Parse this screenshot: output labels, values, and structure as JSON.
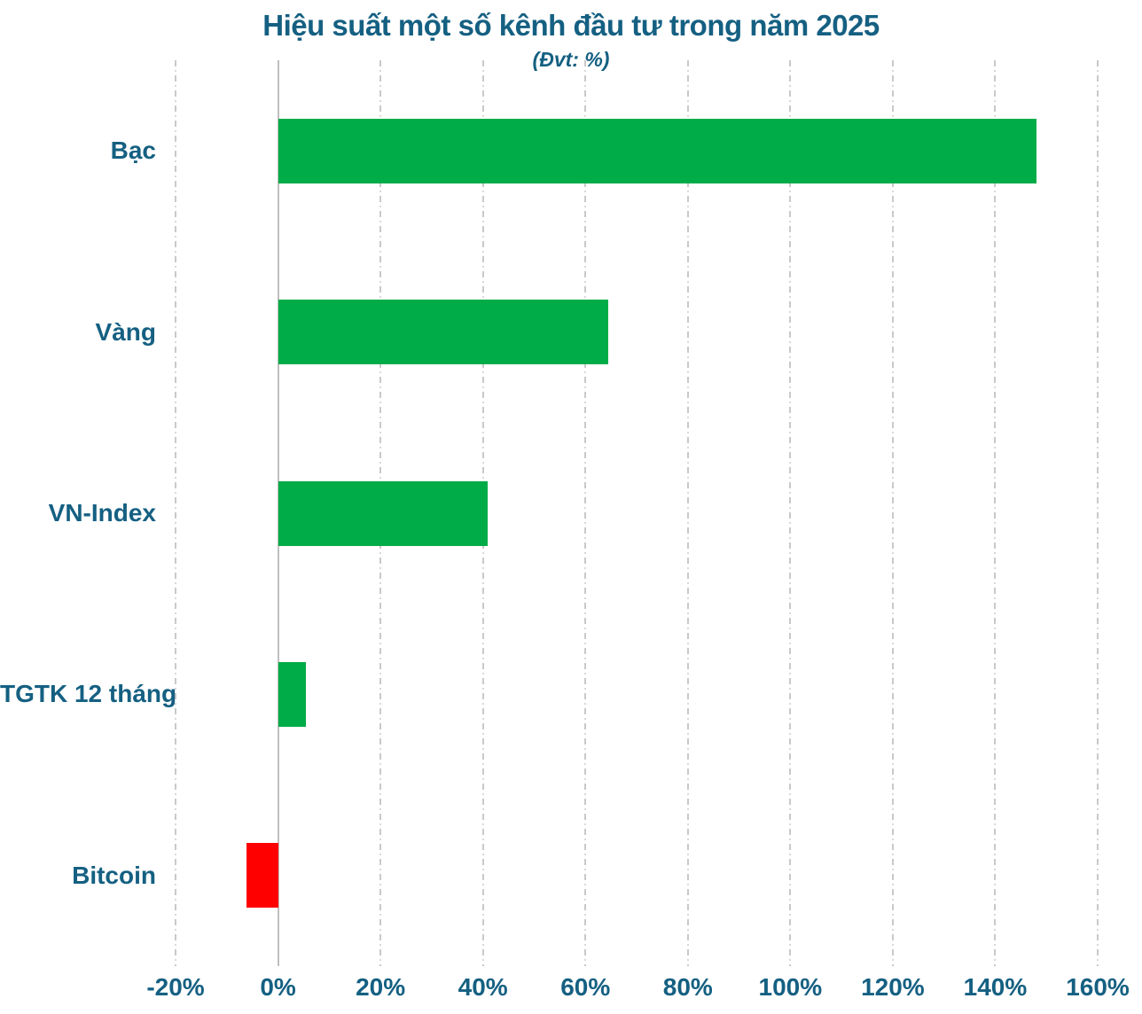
{
  "chart_data": {
    "type": "bar",
    "orientation": "horizontal",
    "title": "Hiệu suất một số kênh đầu tư trong năm 2025",
    "subtitle": "(Đvt: %)",
    "unit": "%",
    "categories": [
      "Bạc",
      "Vàng",
      "VN-Index",
      "TGTK 12 tháng",
      "Bitcoin"
    ],
    "values": [
      148,
      64.5,
      41,
      5.5,
      -6.2
    ],
    "xlim": [
      -20,
      160
    ],
    "x_tick_step": 20,
    "x_tick_labels": [
      "-20%",
      "0%",
      "20%",
      "40%",
      "60%",
      "80%",
      "100%",
      "120%",
      "140%",
      "160%"
    ],
    "grid": "vertical dash-dot",
    "legend": "none",
    "colors": {
      "positive_bar": "#00AC47",
      "negative_bar": "#FF0000",
      "text": "#156082",
      "gridline": "#C9C9C9",
      "zero_axis": "#BFBFBF",
      "background": "#FFFFFF"
    }
  }
}
